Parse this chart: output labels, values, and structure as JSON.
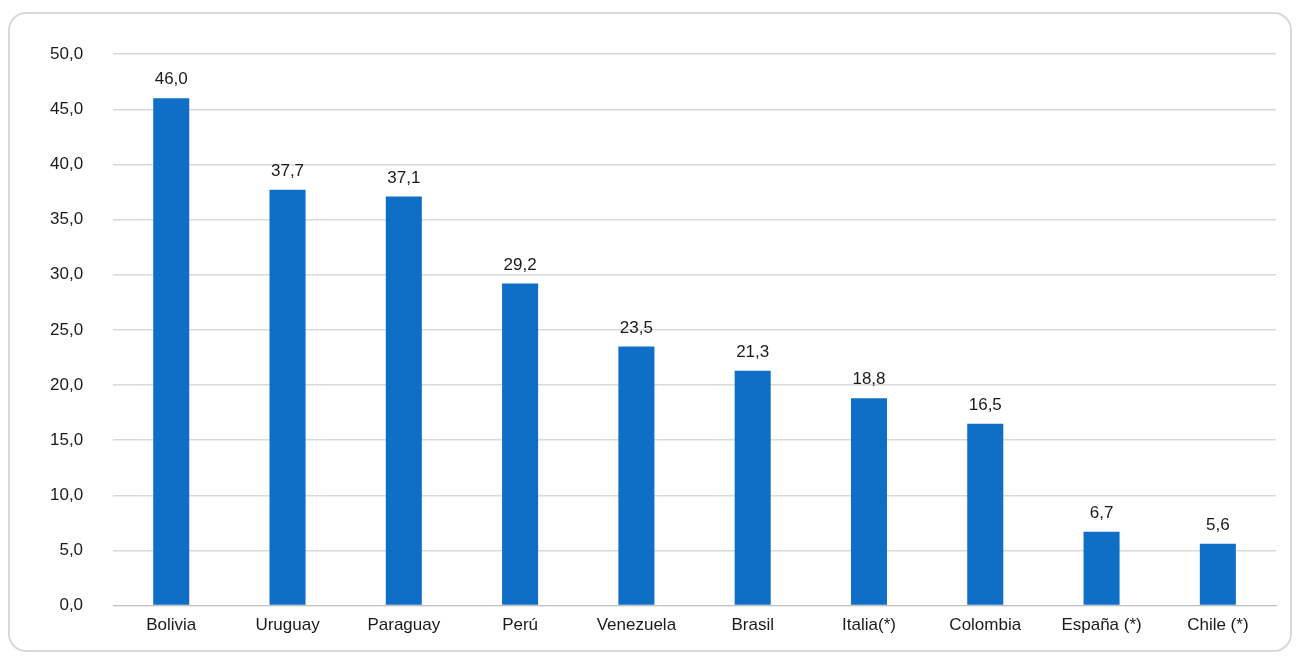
{
  "chart_data": {
    "type": "bar",
    "categories": [
      "Bolivia",
      "Uruguay",
      "Paraguay",
      "Perú",
      "Venezuela",
      "Brasil",
      "Italia(*)",
      "Colombia",
      "España (*)",
      "Chile (*)"
    ],
    "values": [
      46.0,
      37.7,
      37.1,
      29.2,
      23.5,
      21.3,
      18.8,
      16.5,
      6.7,
      5.6
    ],
    "value_labels": [
      "46,0",
      "37,7",
      "37,1",
      "29,2",
      "23,5",
      "21,3",
      "18,8",
      "16,5",
      "6,7",
      "5,6"
    ],
    "color": "#0f6fc6",
    "ylim": [
      0,
      50
    ],
    "yticks": [
      {
        "value": 0,
        "label": "0,0"
      },
      {
        "value": 5,
        "label": "5,0"
      },
      {
        "value": 10,
        "label": "10,0"
      },
      {
        "value": 15,
        "label": "15,0"
      },
      {
        "value": 20,
        "label": "20,0"
      },
      {
        "value": 25,
        "label": "25,0"
      },
      {
        "value": 30,
        "label": "30,0"
      },
      {
        "value": 35,
        "label": "35,0"
      },
      {
        "value": 40,
        "label": "40,0"
      },
      {
        "value": 45,
        "label": "45,0"
      },
      {
        "value": 50,
        "label": "50,0"
      }
    ],
    "grid": "y"
  }
}
